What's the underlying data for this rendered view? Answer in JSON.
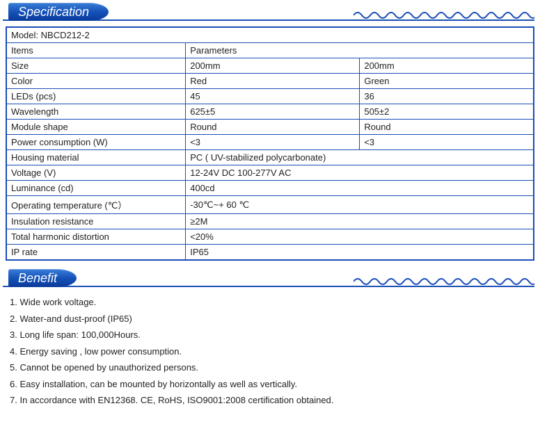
{
  "sections": {
    "spec_title": "Specification",
    "benefit_title": "Benefit"
  },
  "colors": {
    "border": "#1a4db8",
    "header_grad_top": "#3a7ed8",
    "header_grad_bot": "#0a3a9a",
    "text": "#222222"
  },
  "spec_table": {
    "model_label": "Model: NBCD212-2",
    "header_items": "Items",
    "header_params": "Parameters",
    "rows_two": [
      {
        "label": "Size",
        "v1": "200mm",
        "v2": "200mm"
      },
      {
        "label": "Color",
        "v1": "Red",
        "v2": "Green"
      },
      {
        "label": "LEDs (pcs)",
        "v1": "45",
        "v2": "36"
      },
      {
        "label": "Wavelength",
        "v1": "625±5",
        "v2": "505±2"
      },
      {
        "label": "Module shape",
        "v1": "Round",
        "v2": "Round"
      },
      {
        "label": "Power consumption (W)",
        "v1": "<3",
        "v2": "<3"
      }
    ],
    "rows_one": [
      {
        "label": "Housing material",
        "v": "PC ( UV-stabilized polycarbonate)"
      },
      {
        "label": "Voltage (V)",
        "v": "12-24V DC   100-277V AC"
      },
      {
        "label": "Luminance (cd)",
        "v": "400cd"
      },
      {
        "label": "Operating temperature (℃）",
        "v": "-30℃~+ 60 ℃"
      },
      {
        "label": "Insulation resistance",
        "v": "≥2M"
      },
      {
        "label": "Total harmonic distortion",
        "v": "<20%"
      },
      {
        "label": "IP rate",
        "v": "IP65"
      }
    ]
  },
  "benefits": [
    "1. Wide work voltage.",
    "2. Water-and dust-proof (IP65)",
    "3. Long life span: 100,000Hours.",
    "4. Energy saving , low power consumption.",
    "5. Cannot be opened by unauthorized persons.",
    "6. Easy installation, can be mounted by horizontally as well as vertically.",
    "7. In accordance with EN12368. CE, RoHS, ISO9001:2008 certification obtained."
  ]
}
